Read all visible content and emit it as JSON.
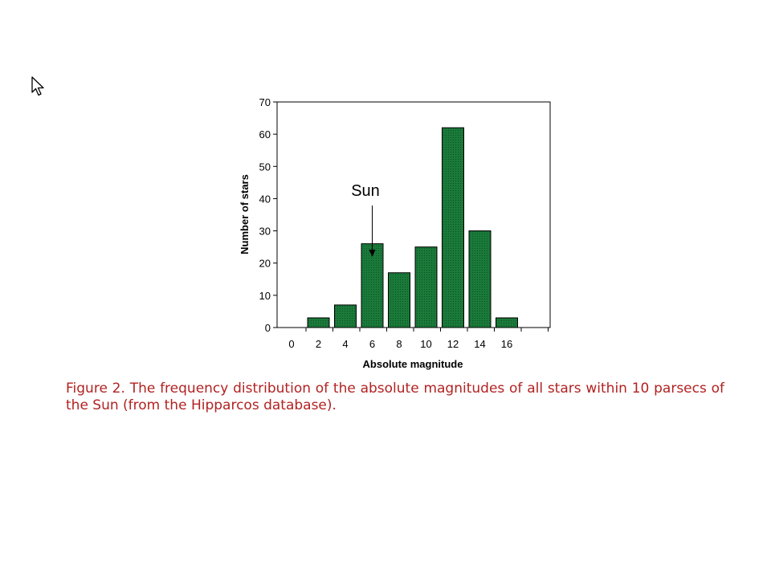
{
  "chart_data": {
    "type": "bar",
    "categories": [
      "2",
      "4",
      "6",
      "8",
      "10",
      "12",
      "14",
      "16"
    ],
    "values": [
      3,
      7,
      26,
      17,
      25,
      62,
      30,
      3
    ],
    "x_ticks": [
      "0",
      "2",
      "4",
      "6",
      "8",
      "10",
      "12",
      "14",
      "16"
    ],
    "y_ticks": [
      "0",
      "10",
      "20",
      "30",
      "40",
      "50",
      "60",
      "70"
    ],
    "ylim": [
      0,
      70
    ],
    "xlabel": "Absolute magnitude",
    "ylabel": "Number of stars",
    "bar_color": "#1a7a3a",
    "annotation": {
      "text": "Sun",
      "target_category": "6"
    },
    "grid": false
  },
  "caption": {
    "prefix": "Figure 2.",
    "text": "The frequency distribution of the absolute magnitudes of all stars within 10 parsecs of the Sun (from the Hipparcos database)."
  },
  "colors": {
    "caption": "#b22222"
  },
  "cursor": {
    "icon": "mouse-pointer-icon"
  }
}
